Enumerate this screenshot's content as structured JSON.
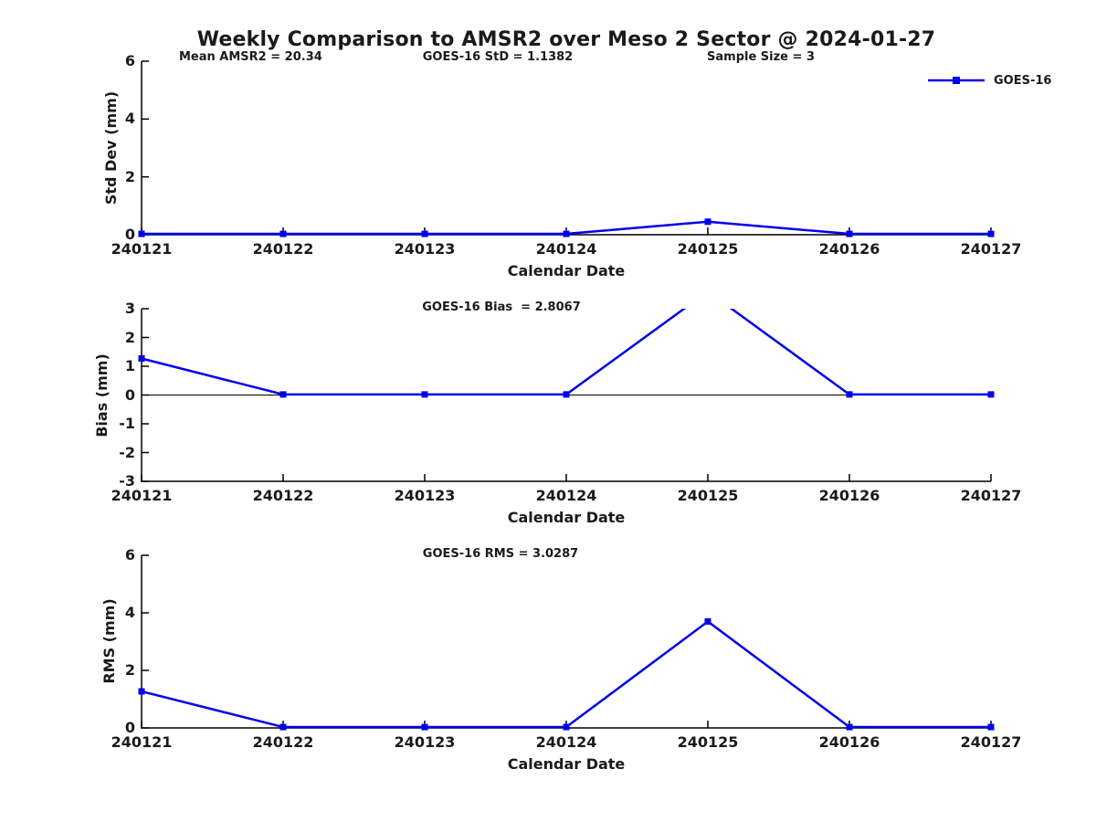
{
  "title": "Weekly Comparison to AMSR2 over Meso 2 Sector @ 2024-01-27",
  "annotations": {
    "mean_amsr2": "Mean AMSR2 = 20.34",
    "goes16_std": "GOES-16 StD = 1.1382",
    "sample_size": "Sample Size = 3",
    "goes16_bias": "GOES-16 Bias  = 2.8067",
    "goes16_rms": "GOES-16 RMS = 3.0287"
  },
  "legend": {
    "label": "GOES-16",
    "color": "#0000EE",
    "marker": "filled-square"
  },
  "colors": {
    "series_blue": "#0000EE",
    "axis_black": "#000000"
  },
  "chart_data": [
    {
      "type": "line",
      "name": "std-dev-panel",
      "title": "",
      "xlabel": "Calendar Date",
      "ylabel": "Std Dev (mm)",
      "x_tick_labels": [
        "240121",
        "240122",
        "240123",
        "240124",
        "240125",
        "240126",
        "240127"
      ],
      "ylim": [
        0,
        6
      ],
      "yticks": [
        0,
        2,
        4,
        6
      ],
      "zero_line": false,
      "grid": false,
      "series": [
        {
          "name": "GOES-16",
          "color": "#0000EE",
          "marker": "square",
          "values": [
            0.03,
            0.03,
            0.03,
            0.03,
            0.45,
            0.03,
            0.03
          ]
        }
      ]
    },
    {
      "type": "line",
      "name": "bias-panel",
      "title": "",
      "xlabel": "Calendar Date",
      "ylabel": "Bias (mm)",
      "x_tick_labels": [
        "240121",
        "240122",
        "240123",
        "240124",
        "240125",
        "240126",
        "240127"
      ],
      "ylim": [
        -3,
        3
      ],
      "yticks": [
        -3,
        -2,
        -1,
        0,
        1,
        2,
        3
      ],
      "zero_line": true,
      "grid": false,
      "clipped_note": "peak at 240125 exceeds +3 axis limit, line clipped",
      "series": [
        {
          "name": "GOES-16",
          "color": "#0000EE",
          "marker": "square",
          "values": [
            1.27,
            0.02,
            0.02,
            0.02,
            3.6,
            0.02,
            0.02
          ]
        }
      ]
    },
    {
      "type": "line",
      "name": "rms-panel",
      "title": "",
      "xlabel": "Calendar Date",
      "ylabel": "RMS (mm)",
      "x_tick_labels": [
        "240121",
        "240122",
        "240123",
        "240124",
        "240125",
        "240126",
        "240127"
      ],
      "ylim": [
        0,
        6
      ],
      "yticks": [
        0,
        2,
        4,
        6
      ],
      "zero_line": false,
      "grid": false,
      "series": [
        {
          "name": "GOES-16",
          "color": "#0000EE",
          "marker": "square",
          "values": [
            1.27,
            0.03,
            0.03,
            0.03,
            3.7,
            0.03,
            0.03
          ]
        }
      ]
    }
  ]
}
